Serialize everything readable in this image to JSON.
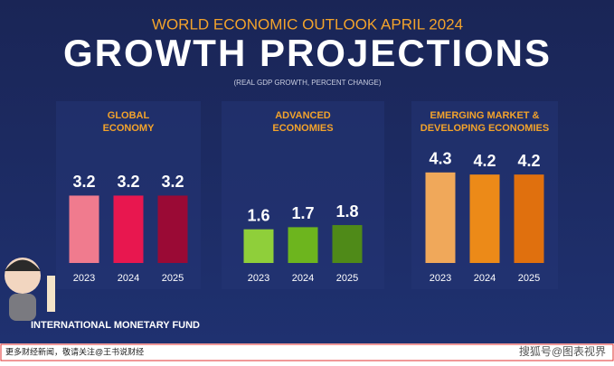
{
  "header": {
    "kicker": "WORLD ECONOMIC OUTLOOK APRIL 2024",
    "title": "GROWTH PROJECTIONS",
    "note": "(REAL GDP GROWTH, PERCENT CHANGE)"
  },
  "chart_data": [
    {
      "type": "bar",
      "title_lines": [
        "GLOBAL",
        "ECONOMY"
      ],
      "categories": [
        "2023",
        "2024",
        "2025"
      ],
      "values": [
        3.2,
        3.2,
        3.2
      ],
      "colors": [
        "#f07b8e",
        "#e8174f",
        "#9a0a35"
      ]
    },
    {
      "type": "bar",
      "title_lines": [
        "ADVANCED",
        "ECONOMIES"
      ],
      "categories": [
        "2023",
        "2024",
        "2025"
      ],
      "values": [
        1.6,
        1.7,
        1.8
      ],
      "colors": [
        "#8fcf3a",
        "#6db51e",
        "#4f8a18"
      ]
    },
    {
      "type": "bar",
      "title_lines": [
        "EMERGING MARKET &",
        "DEVELOPING ECONOMIES"
      ],
      "categories": [
        "2023",
        "2024",
        "2025"
      ],
      "values": [
        4.3,
        4.2,
        4.2
      ],
      "colors": [
        "#f0a85a",
        "#ec8a18",
        "#e0700e"
      ]
    }
  ],
  "footer": {
    "org": "INTERNATIONAL MONETARY FUND",
    "watermark_left": "更多财经新闻，敬请关注@王书说财经",
    "watermark_right": "搜狐号@图表视界"
  }
}
